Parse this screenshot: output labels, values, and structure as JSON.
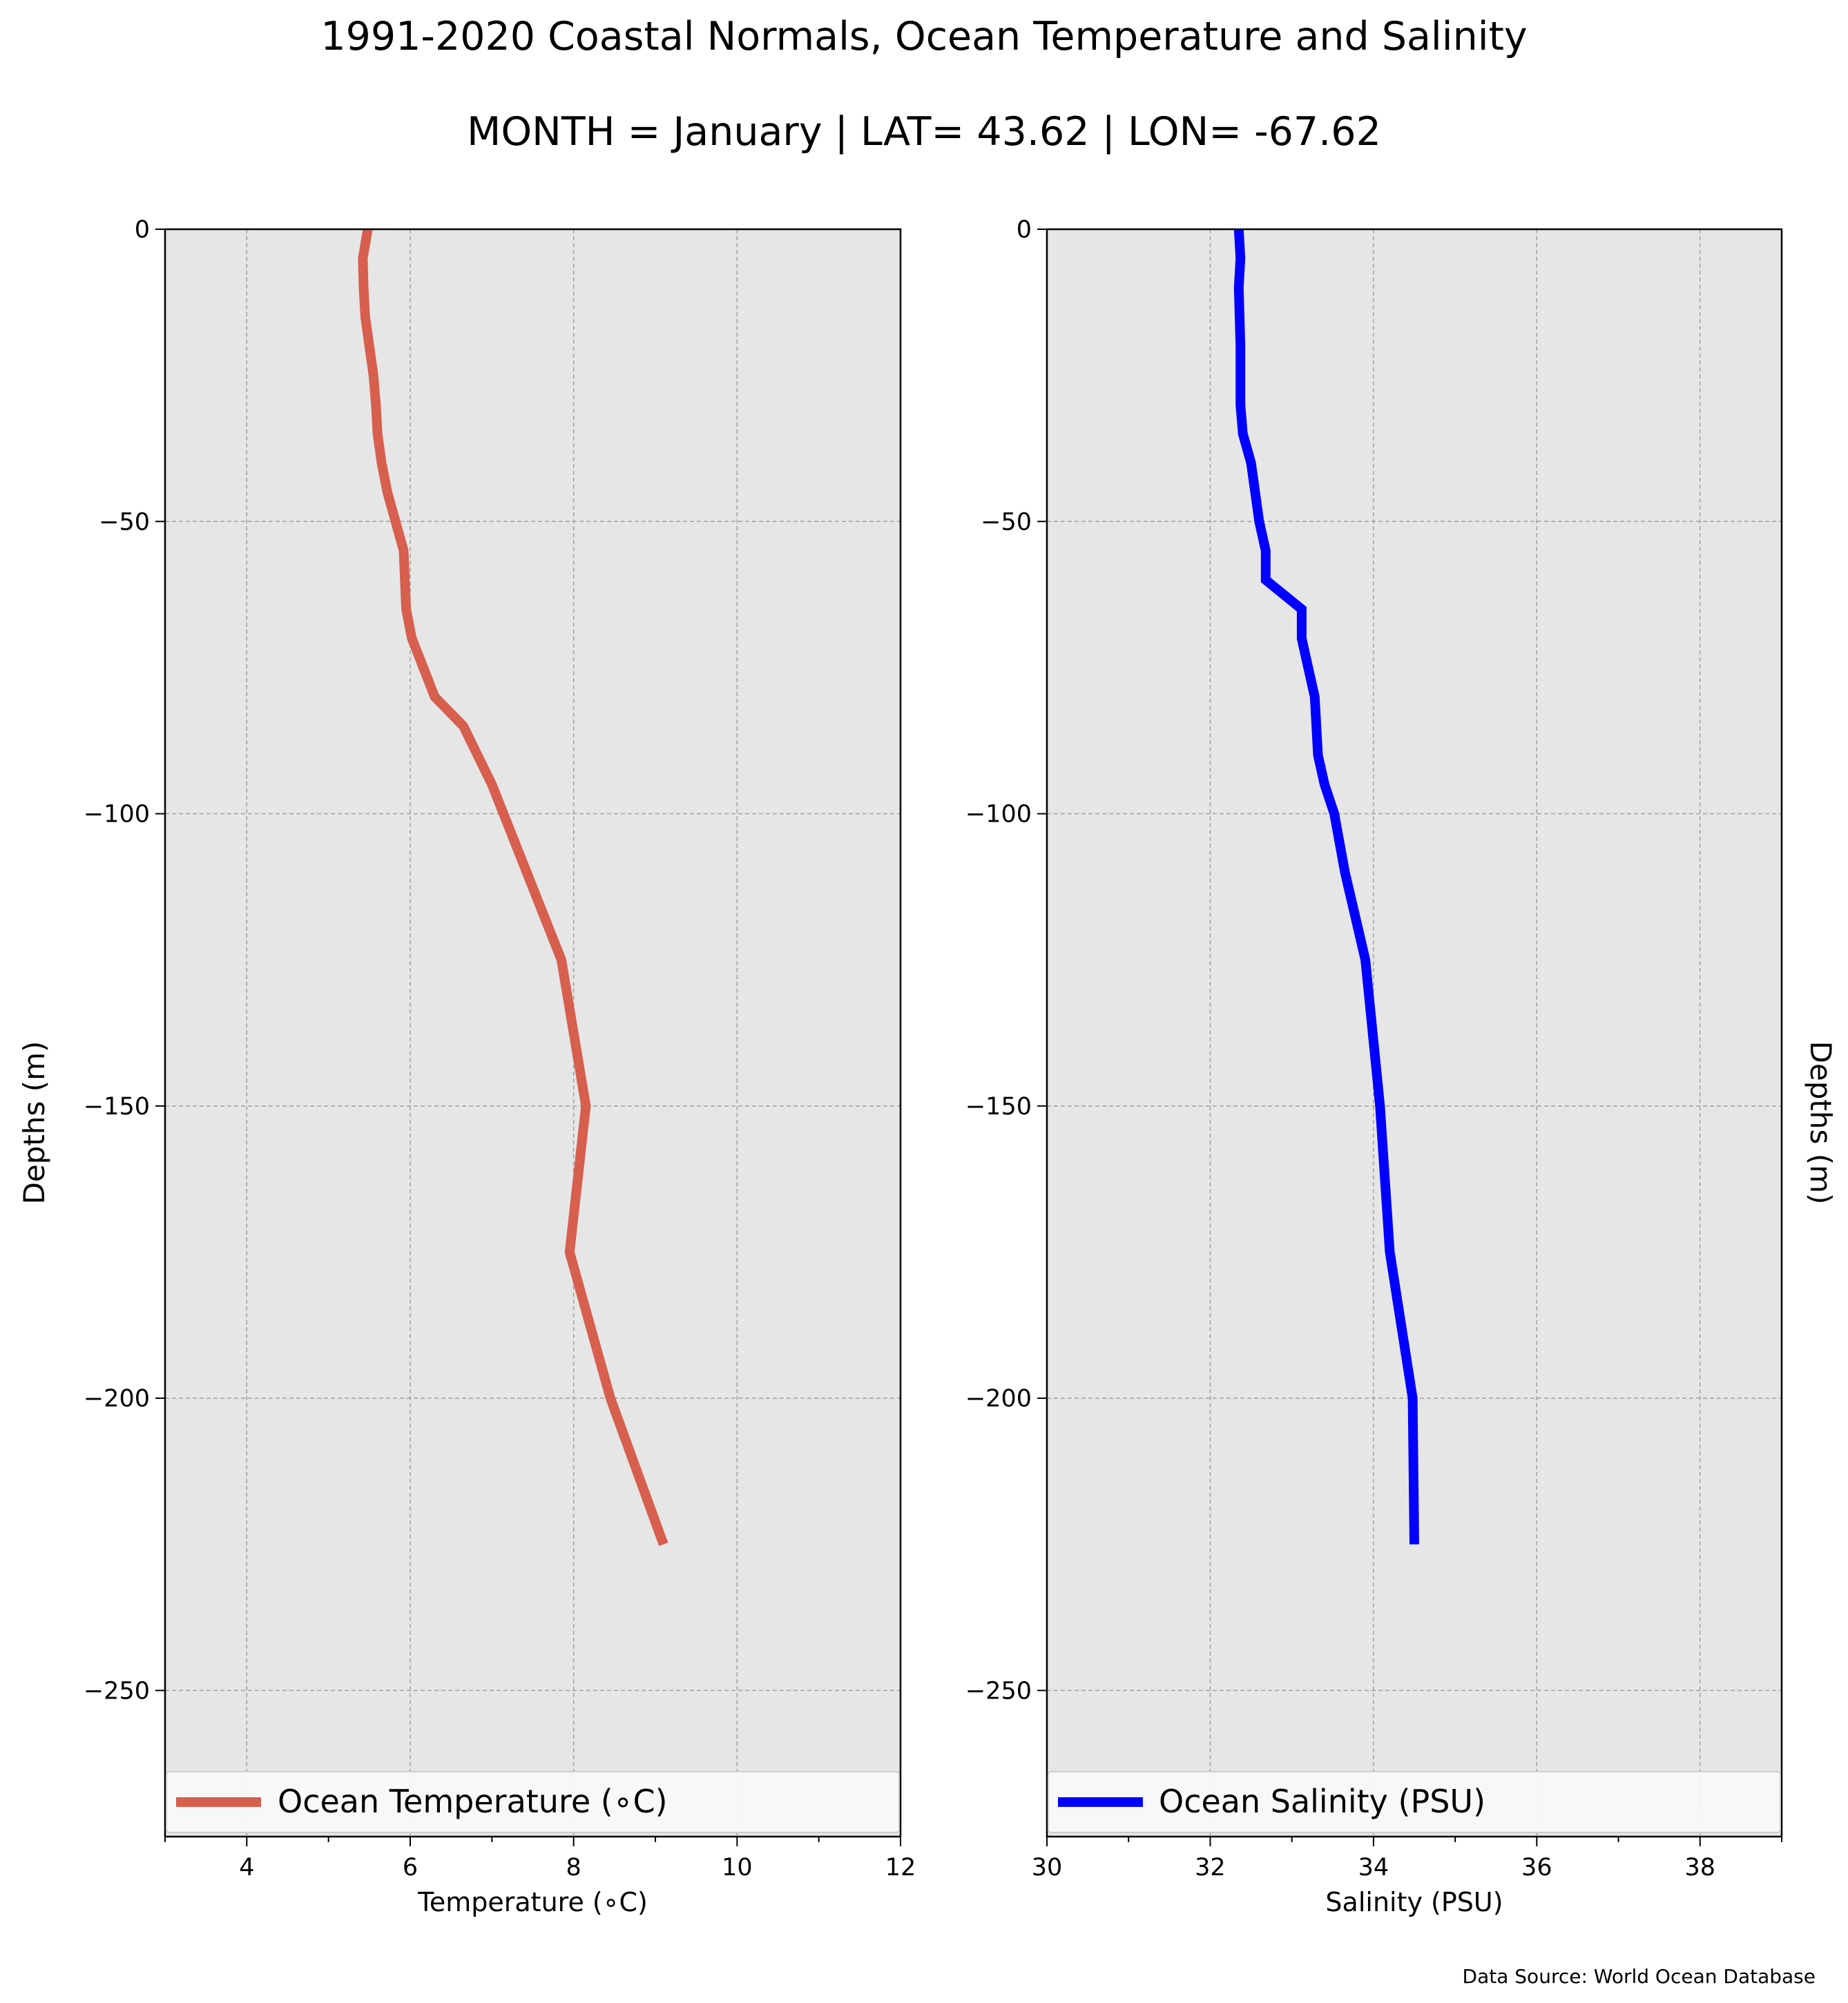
{
  "figure": {
    "title": "1991-2020 Coastal Normals, Ocean Temperature and Salinity",
    "subtitle": "MONTH = January | LAT= 43.62 | LON= -67.62",
    "source": "Data Source: World Ocean Database"
  },
  "chart_data": [
    {
      "type": "line",
      "xlabel": "Temperature (∘C)",
      "ylabel": "Depths (m)",
      "ylabel_side": "left",
      "xlim": [
        3,
        12
      ],
      "ylim": [
        -275,
        0
      ],
      "xticks": [
        4,
        6,
        8,
        10,
        12
      ],
      "xtick_labels": [
        "4",
        "6",
        "8",
        "10",
        "12"
      ],
      "yticks": [
        0,
        -50,
        -100,
        -150,
        -200,
        -250
      ],
      "ytick_labels": [
        "0",
        "−50",
        "−100",
        "−150",
        "−200",
        "−250"
      ],
      "grid": true,
      "legend": "bottom",
      "background": "#e6e6e6",
      "series": [
        {
          "name": "Ocean Temperature (∘C)",
          "color": "#d65f4e",
          "x": [
            5.48,
            5.42,
            5.43,
            5.45,
            5.5,
            5.55,
            5.58,
            5.6,
            5.65,
            5.72,
            5.92,
            5.95,
            6.02,
            6.3,
            6.65,
            7.0,
            7.85,
            8.15,
            7.95,
            8.45,
            9.1
          ],
          "y": [
            0,
            -5,
            -10,
            -15,
            -20,
            -25,
            -30,
            -35,
            -40,
            -45,
            -55,
            -65,
            -70,
            -80,
            -85,
            -95,
            -125,
            -150,
            -175,
            -200,
            -225
          ]
        }
      ]
    },
    {
      "type": "line",
      "xlabel": "Salinity (PSU)",
      "ylabel": "Depths (m)",
      "ylabel_side": "right",
      "xlim": [
        30,
        39
      ],
      "ylim": [
        -275,
        0
      ],
      "xticks": [
        30,
        32,
        34,
        36,
        38
      ],
      "xtick_labels": [
        "30",
        "32",
        "34",
        "36",
        "38"
      ],
      "yticks": [
        0,
        -50,
        -100,
        -150,
        -200,
        -250
      ],
      "ytick_labels": [
        "0",
        "−50",
        "−100",
        "−150",
        "−200",
        "−250"
      ],
      "grid": true,
      "legend": "bottom",
      "background": "#e6e6e6",
      "series": [
        {
          "name": "Ocean Salinity (PSU)",
          "color": "#0000ff",
          "x": [
            32.35,
            32.37,
            32.35,
            32.36,
            32.37,
            32.37,
            32.37,
            32.4,
            32.5,
            32.55,
            32.6,
            32.68,
            32.68,
            33.12,
            33.12,
            33.2,
            33.28,
            33.32,
            33.4,
            33.52,
            33.65,
            33.9,
            34.08,
            34.2,
            34.48,
            34.5
          ],
          "y": [
            0,
            -5,
            -10,
            -15,
            -20,
            -25,
            -30,
            -35,
            -40,
            -45,
            -50,
            -55,
            -60,
            -65,
            -70,
            -75,
            -80,
            -90,
            -95,
            -100,
            -110,
            -125,
            -150,
            -175,
            -200,
            -225
          ]
        }
      ]
    }
  ]
}
